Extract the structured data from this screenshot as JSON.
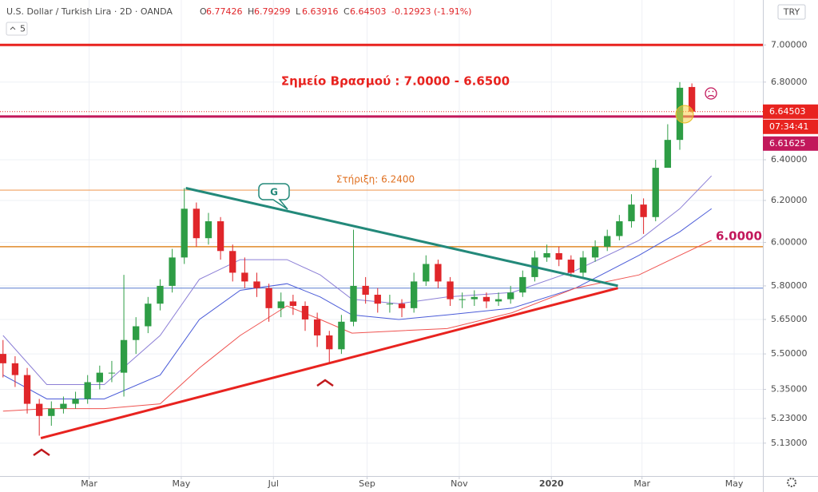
{
  "chart_data": {
    "type": "candlestick",
    "title": "U.S. Dollar / Turkish Lira · 2D · OANDA",
    "ohlc": [
      {
        "label": "O",
        "value": "6.77426"
      },
      {
        "label": "H",
        "value": "6.79299"
      },
      {
        "label": "L",
        "value": "6.63916"
      },
      {
        "label": "C",
        "value": "6.64503"
      }
    ],
    "change": "-0.12923 (-1.91%)",
    "interval_button": "5",
    "currency": "TRY",
    "log": true,
    "grid": true,
    "up_color": "#2e9d45",
    "down_color": "#e0262a",
    "xlim": [
      0,
      505
    ],
    "xticks": [
      {
        "value": 59,
        "label": "Mar"
      },
      {
        "value": 120,
        "label": "May"
      },
      {
        "value": 181,
        "label": "Jul"
      },
      {
        "value": 243,
        "label": "Sep"
      },
      {
        "value": 304,
        "label": "Nov"
      },
      {
        "value": 365,
        "label": "2020"
      },
      {
        "value": 425,
        "label": "Mar"
      },
      {
        "value": 486,
        "label": "May"
      }
    ],
    "ylim": [
      5.0,
      7.25
    ],
    "yticks": [
      {
        "value": 7.0,
        "label": "7.00000"
      },
      {
        "value": 6.8,
        "label": "6.80000"
      },
      {
        "value": 6.4,
        "label": "6.40000"
      },
      {
        "value": 6.2,
        "label": "6.20000"
      },
      {
        "value": 6.0,
        "label": "6.00000"
      },
      {
        "value": 5.8,
        "label": "5.80000"
      },
      {
        "value": 5.65,
        "label": "5.65000"
      },
      {
        "value": 5.5,
        "label": "5.50000"
      },
      {
        "value": 5.35,
        "label": "5.35000"
      },
      {
        "value": 5.23,
        "label": "5.23000"
      },
      {
        "value": 5.13,
        "label": "5.13000"
      }
    ],
    "candles": {
      "x": [
        2,
        10,
        18,
        26,
        34,
        42,
        50,
        58,
        66,
        74,
        82,
        90,
        98,
        106,
        114,
        122,
        130,
        138,
        146,
        154,
        162,
        170,
        178,
        186,
        194,
        202,
        210,
        218,
        226,
        234,
        242,
        250,
        258,
        266,
        274,
        282,
        290,
        298,
        306,
        314,
        322,
        330,
        338,
        346,
        354,
        362,
        370,
        378,
        386,
        394,
        402,
        410,
        418,
        426,
        434,
        442,
        450,
        458
      ],
      "open": [
        5.5,
        5.46,
        5.41,
        5.29,
        5.24,
        5.27,
        5.29,
        5.31,
        5.38,
        5.42,
        5.42,
        5.56,
        5.62,
        5.72,
        5.8,
        5.93,
        6.16,
        6.02,
        6.1,
        5.96,
        5.86,
        5.82,
        5.79,
        5.7,
        5.73,
        5.71,
        5.65,
        5.58,
        5.52,
        5.64,
        5.8,
        5.76,
        5.72,
        5.72,
        5.7,
        5.82,
        5.9,
        5.82,
        5.74,
        5.74,
        5.75,
        5.73,
        5.74,
        5.77,
        5.84,
        5.93,
        5.95,
        5.92,
        5.86,
        5.93,
        5.98,
        6.03,
        6.1,
        6.18,
        6.12,
        6.36,
        6.5,
        6.774
      ],
      "high": [
        5.56,
        5.49,
        5.44,
        5.31,
        5.3,
        5.32,
        5.34,
        5.41,
        5.45,
        5.47,
        5.85,
        5.66,
        5.75,
        5.83,
        5.97,
        6.26,
        6.19,
        6.14,
        6.12,
        5.99,
        5.93,
        5.86,
        5.81,
        5.77,
        5.76,
        5.73,
        5.68,
        5.6,
        5.67,
        6.06,
        5.84,
        5.79,
        5.76,
        5.74,
        5.86,
        5.94,
        5.92,
        5.84,
        5.77,
        5.78,
        5.77,
        5.77,
        5.8,
        5.87,
        5.96,
        5.99,
        5.98,
        5.94,
        5.96,
        6.01,
        6.06,
        6.13,
        6.23,
        6.21,
        6.4,
        6.58,
        6.8,
        6.793
      ],
      "low": [
        5.4,
        5.36,
        5.25,
        5.16,
        5.2,
        5.25,
        5.27,
        5.29,
        5.35,
        5.38,
        5.32,
        5.5,
        5.59,
        5.69,
        5.77,
        5.9,
        5.98,
        5.99,
        5.92,
        5.82,
        5.79,
        5.75,
        5.64,
        5.66,
        5.67,
        5.6,
        5.53,
        5.46,
        5.5,
        5.62,
        5.72,
        5.68,
        5.68,
        5.66,
        5.68,
        5.8,
        5.79,
        5.71,
        5.7,
        5.71,
        5.7,
        5.71,
        5.72,
        5.75,
        5.82,
        5.91,
        5.89,
        5.84,
        5.84,
        5.91,
        5.96,
        6.01,
        6.07,
        6.04,
        6.1,
        6.38,
        6.45,
        6.639
      ],
      "close": [
        5.46,
        5.41,
        5.29,
        5.24,
        5.27,
        5.29,
        5.31,
        5.38,
        5.42,
        5.42,
        5.56,
        5.62,
        5.72,
        5.8,
        5.93,
        6.16,
        6.02,
        6.1,
        5.96,
        5.86,
        5.82,
        5.79,
        5.7,
        5.73,
        5.71,
        5.65,
        5.58,
        5.52,
        5.64,
        5.8,
        5.76,
        5.72,
        5.72,
        5.7,
        5.82,
        5.9,
        5.82,
        5.74,
        5.74,
        5.75,
        5.73,
        5.74,
        5.77,
        5.84,
        5.93,
        5.95,
        5.92,
        5.86,
        5.93,
        5.98,
        6.03,
        6.1,
        6.18,
        6.12,
        6.36,
        6.5,
        6.77,
        6.645
      ]
    },
    "series": [
      {
        "color": "#8c7fd6",
        "x": [
          2,
          31,
          69,
          106,
          132,
          159,
          190,
          212,
          233,
          264,
          296,
          339,
          381,
          423,
          450,
          471
        ],
        "values": [
          5.58,
          5.37,
          5.37,
          5.58,
          5.83,
          5.92,
          5.92,
          5.85,
          5.74,
          5.72,
          5.75,
          5.77,
          5.87,
          6.01,
          6.16,
          6.32
        ]
      },
      {
        "color": "#4a5bd8",
        "x": [
          2,
          31,
          69,
          106,
          132,
          159,
          190,
          212,
          233,
          264,
          296,
          339,
          381,
          423,
          450,
          471
        ],
        "values": [
          5.41,
          5.31,
          5.31,
          5.41,
          5.65,
          5.78,
          5.81,
          5.75,
          5.67,
          5.65,
          5.67,
          5.7,
          5.79,
          5.94,
          6.05,
          6.16
        ]
      },
      {
        "color": "#ef5350",
        "x": [
          2,
          31,
          69,
          106,
          132,
          159,
          190,
          212,
          233,
          264,
          296,
          339,
          381,
          423,
          450,
          471
        ],
        "values": [
          5.26,
          5.27,
          5.27,
          5.29,
          5.44,
          5.58,
          5.71,
          5.65,
          5.59,
          5.6,
          5.61,
          5.68,
          5.79,
          5.85,
          5.94,
          6.01
        ]
      }
    ],
    "levels": [
      {
        "value": 7.0,
        "color": "#e8231f"
      },
      {
        "value": 6.62,
        "color": "#c2185b"
      },
      {
        "value": 6.25,
        "color": "#f0a060"
      },
      {
        "value": 5.98,
        "color": "#e08a2a"
      },
      {
        "value": 5.79,
        "color": "#5b7fd0"
      }
    ],
    "trendlines": [
      {
        "x": [
          123,
          409
        ],
        "values": [
          6.26,
          5.8
        ],
        "color": "#23897a"
      },
      {
        "x": [
          27,
          409
        ],
        "values": [
          5.15,
          5.79
        ],
        "color": "#e8231f"
      }
    ],
    "price_labels": [
      {
        "value": 6.64503,
        "label": "6.64503",
        "color": "#e8231f"
      },
      {
        "value": 6.61625,
        "label": "6.61625",
        "color": "#c2185b"
      }
    ],
    "countdown": "07:34:41",
    "annotations": [
      "Σημείο Βρασμού : 7.0000 - 6.6500",
      "Στήριξη: 6.2400",
      "6.0000",
      "G"
    ]
  }
}
